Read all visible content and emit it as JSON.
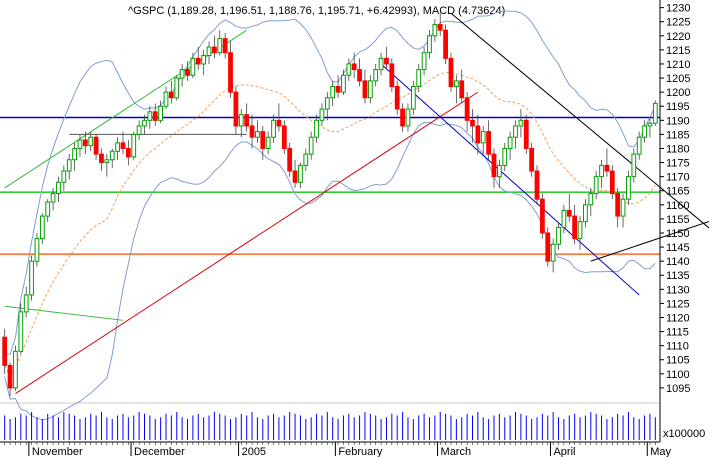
{
  "chart_data": {
    "type": "candlestick",
    "title": "^GSPC (1,189.28, 1,196.51, 1,188.76, 1,195.71, +6.42993), MACD (4.73624)",
    "colors": {
      "background": "#ffffff",
      "up": "#00a000",
      "down": "#ff0000",
      "bollinger": "#7f9fd0",
      "moving_average": "#f0a060",
      "support_green": "#33cc33",
      "support_orange": "#ff6620",
      "trend_blue": "#0000cc",
      "trend_red": "#dd0000",
      "trend_green": "#33bb33",
      "trend_black": "#000000",
      "volume": "#0000ff",
      "axis": "#000000"
    },
    "y_axis": {
      "position": "right",
      "ylim": [
        1090,
        1232
      ],
      "ticks": [
        1095,
        1100,
        1105,
        1110,
        1115,
        1120,
        1125,
        1130,
        1135,
        1140,
        1145,
        1150,
        1155,
        1160,
        1165,
        1170,
        1175,
        1180,
        1185,
        1190,
        1195,
        1200,
        1205,
        1210,
        1215,
        1220,
        1225,
        1230
      ]
    },
    "volume_axis_label": "x100000",
    "x_axis": {
      "months": [
        {
          "label": "November",
          "index": 5
        },
        {
          "label": "December",
          "index": 24
        },
        {
          "label": "2005",
          "index": 44
        },
        {
          "label": "February",
          "index": 62
        },
        {
          "label": "March",
          "index": 81
        },
        {
          "label": "April",
          "index": 102
        },
        {
          "label": "May",
          "index": 120
        }
      ]
    },
    "horizontal_lines": [
      {
        "name": "resistance-blue",
        "value": 1191,
        "color": "#0000cc"
      },
      {
        "name": "support-green",
        "value": 1164.5,
        "color": "#33cc33"
      },
      {
        "name": "support-orange",
        "value": 1142.5,
        "color": "#ff6620"
      }
    ],
    "trend_lines": [
      {
        "name": "trend-red",
        "x1": 2,
        "y1": 1093,
        "x2": 88,
        "y2": 1200,
        "color": "#dd0000"
      },
      {
        "name": "trend-blue-down",
        "x1": 70,
        "y1": 1210,
        "x2": 118,
        "y2": 1128,
        "color": "#0000cc"
      },
      {
        "name": "trend-black-down",
        "x1": 83,
        "y1": 1228,
        "x2": 134,
        "y2": 1147,
        "color": "#000000"
      },
      {
        "name": "trend-green-up",
        "x1": 0,
        "y1": 1166,
        "x2": 45,
        "y2": 1222,
        "color": "#33bb33"
      },
      {
        "name": "trend-green-short",
        "x1": 0,
        "y1": 1124,
        "x2": 22,
        "y2": 1119,
        "color": "#33bb33"
      },
      {
        "name": "trend-black-short",
        "x1": 109,
        "y1": 1140,
        "x2": 134,
        "y2": 1156,
        "color": "#000000"
      },
      {
        "name": "trend-gray-short",
        "x1": 12,
        "y1": 1185,
        "x2": 45,
        "y2": 1185,
        "color": "#555555"
      }
    ],
    "candles": [
      [
        1113,
        1116,
        1100,
        1103
      ],
      [
        1103,
        1104,
        1092,
        1095
      ],
      [
        1095,
        1110,
        1094,
        1108
      ],
      [
        1108,
        1125,
        1107,
        1122
      ],
      [
        1122,
        1131,
        1120,
        1128
      ],
      [
        1128,
        1142,
        1126,
        1140
      ],
      [
        1140,
        1150,
        1138,
        1148
      ],
      [
        1148,
        1157,
        1146,
        1156
      ],
      [
        1156,
        1162,
        1154,
        1161
      ],
      [
        1161,
        1166,
        1158,
        1164
      ],
      [
        1164,
        1170,
        1161,
        1168
      ],
      [
        1168,
        1174,
        1165,
        1172
      ],
      [
        1172,
        1178,
        1169,
        1176
      ],
      [
        1176,
        1182,
        1172,
        1180
      ],
      [
        1180,
        1185,
        1177,
        1183
      ],
      [
        1183,
        1186,
        1178,
        1181
      ],
      [
        1181,
        1186,
        1179,
        1184
      ],
      [
        1184,
        1185,
        1176,
        1178
      ],
      [
        1178,
        1180,
        1172,
        1175
      ],
      [
        1175,
        1178,
        1170,
        1176
      ],
      [
        1176,
        1180,
        1173,
        1179
      ],
      [
        1179,
        1184,
        1176,
        1182
      ],
      [
        1182,
        1186,
        1178,
        1180
      ],
      [
        1180,
        1183,
        1174,
        1177
      ],
      [
        1177,
        1186,
        1176,
        1185
      ],
      [
        1185,
        1190,
        1183,
        1188
      ],
      [
        1188,
        1192,
        1185,
        1190
      ],
      [
        1190,
        1195,
        1187,
        1193
      ],
      [
        1193,
        1196,
        1188,
        1190
      ],
      [
        1190,
        1197,
        1189,
        1195
      ],
      [
        1195,
        1202,
        1194,
        1200
      ],
      [
        1200,
        1204,
        1196,
        1198
      ],
      [
        1198,
        1206,
        1197,
        1205
      ],
      [
        1205,
        1210,
        1202,
        1208
      ],
      [
        1208,
        1211,
        1204,
        1206
      ],
      [
        1206,
        1214,
        1205,
        1212
      ],
      [
        1212,
        1216,
        1208,
        1210
      ],
      [
        1210,
        1215,
        1206,
        1213
      ],
      [
        1213,
        1218,
        1210,
        1216
      ],
      [
        1216,
        1220,
        1212,
        1214
      ],
      [
        1214,
        1222,
        1213,
        1219
      ],
      [
        1219,
        1221,
        1212,
        1214
      ],
      [
        1214,
        1218,
        1198,
        1200
      ],
      [
        1200,
        1202,
        1185,
        1188
      ],
      [
        1188,
        1194,
        1184,
        1192
      ],
      [
        1192,
        1196,
        1186,
        1188
      ],
      [
        1188,
        1192,
        1180,
        1184
      ],
      [
        1184,
        1190,
        1182,
        1186
      ],
      [
        1186,
        1188,
        1176,
        1180
      ],
      [
        1180,
        1186,
        1178,
        1184
      ],
      [
        1184,
        1192,
        1182,
        1190
      ],
      [
        1190,
        1196,
        1186,
        1188
      ],
      [
        1188,
        1190,
        1178,
        1180
      ],
      [
        1180,
        1182,
        1170,
        1172
      ],
      [
        1172,
        1176,
        1166,
        1168
      ],
      [
        1168,
        1175,
        1166,
        1174
      ],
      [
        1174,
        1180,
        1172,
        1178
      ],
      [
        1178,
        1186,
        1176,
        1184
      ],
      [
        1184,
        1192,
        1182,
        1190
      ],
      [
        1190,
        1196,
        1188,
        1194
      ],
      [
        1194,
        1200,
        1190,
        1198
      ],
      [
        1198,
        1204,
        1195,
        1202
      ],
      [
        1202,
        1206,
        1198,
        1200
      ],
      [
        1200,
        1208,
        1199,
        1206
      ],
      [
        1206,
        1212,
        1204,
        1210
      ],
      [
        1210,
        1214,
        1205,
        1208
      ],
      [
        1208,
        1212,
        1202,
        1204
      ],
      [
        1204,
        1208,
        1196,
        1198
      ],
      [
        1198,
        1206,
        1196,
        1204
      ],
      [
        1204,
        1210,
        1202,
        1208
      ],
      [
        1208,
        1214,
        1206,
        1212
      ],
      [
        1212,
        1216,
        1208,
        1210
      ],
      [
        1210,
        1212,
        1200,
        1202
      ],
      [
        1202,
        1204,
        1192,
        1194
      ],
      [
        1194,
        1196,
        1186,
        1188
      ],
      [
        1188,
        1196,
        1186,
        1194
      ],
      [
        1194,
        1204,
        1192,
        1202
      ],
      [
        1202,
        1210,
        1200,
        1208
      ],
      [
        1208,
        1216,
        1206,
        1214
      ],
      [
        1214,
        1222,
        1212,
        1220
      ],
      [
        1220,
        1226,
        1218,
        1224
      ],
      [
        1224,
        1228,
        1220,
        1222
      ],
      [
        1222,
        1224,
        1210,
        1212
      ],
      [
        1212,
        1214,
        1200,
        1202
      ],
      [
        1202,
        1206,
        1196,
        1204
      ],
      [
        1204,
        1208,
        1196,
        1198
      ],
      [
        1198,
        1200,
        1186,
        1190
      ],
      [
        1190,
        1194,
        1182,
        1188
      ],
      [
        1188,
        1192,
        1178,
        1182
      ],
      [
        1182,
        1188,
        1178,
        1186
      ],
      [
        1186,
        1190,
        1176,
        1178
      ],
      [
        1178,
        1180,
        1166,
        1170
      ],
      [
        1170,
        1176,
        1166,
        1174
      ],
      [
        1174,
        1182,
        1172,
        1180
      ],
      [
        1180,
        1186,
        1176,
        1184
      ],
      [
        1184,
        1190,
        1180,
        1188
      ],
      [
        1188,
        1194,
        1184,
        1190
      ],
      [
        1190,
        1192,
        1178,
        1180
      ],
      [
        1180,
        1182,
        1170,
        1172
      ],
      [
        1172,
        1174,
        1160,
        1162
      ],
      [
        1162,
        1164,
        1148,
        1150
      ],
      [
        1150,
        1152,
        1138,
        1140
      ],
      [
        1140,
        1148,
        1136,
        1146
      ],
      [
        1146,
        1154,
        1144,
        1152
      ],
      [
        1152,
        1160,
        1150,
        1158
      ],
      [
        1158,
        1164,
        1154,
        1156
      ],
      [
        1156,
        1160,
        1146,
        1148
      ],
      [
        1148,
        1156,
        1144,
        1154
      ],
      [
        1154,
        1162,
        1152,
        1160
      ],
      [
        1160,
        1166,
        1156,
        1164
      ],
      [
        1164,
        1172,
        1162,
        1170
      ],
      [
        1170,
        1176,
        1166,
        1174
      ],
      [
        1174,
        1180,
        1170,
        1172
      ],
      [
        1172,
        1174,
        1162,
        1164
      ],
      [
        1164,
        1166,
        1152,
        1156
      ],
      [
        1156,
        1164,
        1152,
        1162
      ],
      [
        1162,
        1172,
        1160,
        1170
      ],
      [
        1170,
        1180,
        1168,
        1178
      ],
      [
        1178,
        1186,
        1176,
        1184
      ],
      [
        1184,
        1190,
        1182,
        1188
      ],
      [
        1188,
        1191,
        1184,
        1189
      ],
      [
        1189,
        1197,
        1188,
        1196
      ]
    ],
    "volumes": [
      14,
      12,
      13,
      15,
      14,
      16,
      13,
      12,
      15,
      14,
      13,
      16,
      15,
      14,
      12,
      13,
      15,
      14,
      16,
      13,
      12,
      14,
      15,
      13,
      14,
      16,
      15,
      14,
      12,
      13,
      15,
      14,
      16,
      13,
      12,
      14,
      15,
      13,
      14,
      16,
      15,
      14,
      12,
      13,
      15,
      14,
      16,
      13,
      12,
      14,
      15,
      13,
      14,
      16,
      15,
      14,
      12,
      13,
      15,
      14,
      16,
      13,
      12,
      14,
      15,
      13,
      14,
      16,
      15,
      14,
      12,
      13,
      15,
      14,
      16,
      13,
      12,
      14,
      15,
      13,
      14,
      16,
      15,
      14,
      12,
      13,
      15,
      14,
      16,
      13,
      12,
      14,
      15,
      13,
      14,
      16,
      15,
      14,
      12,
      13,
      15,
      14,
      16,
      13,
      12,
      14,
      15,
      13,
      14,
      16,
      15,
      14,
      12,
      13,
      15,
      14,
      16,
      13,
      12,
      14,
      15,
      13
    ],
    "volume_max": 20
  }
}
